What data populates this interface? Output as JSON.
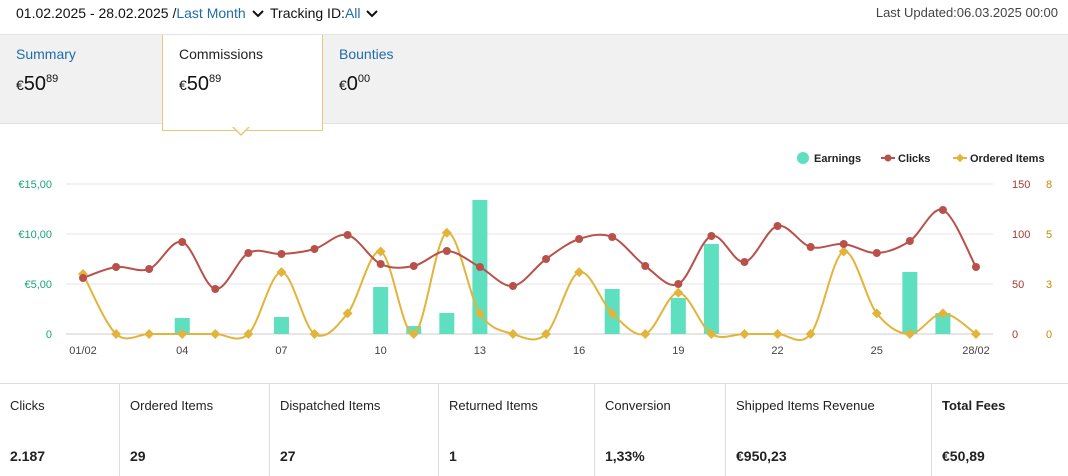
{
  "header": {
    "date_range": "01.02.2025 - 28.02.2025 /",
    "period_label": "Last Month",
    "tracking_label": "Tracking ID:",
    "tracking_value": "All",
    "last_updated": "Last Updated:06.03.2025 00:00"
  },
  "tabs": [
    {
      "label": "Summary",
      "currency": "€",
      "whole": "50",
      "cents": "89"
    },
    {
      "label": "Commissions",
      "currency": "€",
      "whole": "50",
      "cents": "89"
    },
    {
      "label": "Bounties",
      "currency": "€",
      "whole": "0",
      "cents": "00"
    }
  ],
  "stats": [
    {
      "label": "Clicks",
      "value": "2.187"
    },
    {
      "label": "Ordered Items",
      "value": "29"
    },
    {
      "label": "Dispatched Items",
      "value": "27"
    },
    {
      "label": "Returned Items",
      "value": "1"
    },
    {
      "label": "Conversion",
      "value": "1,33%"
    },
    {
      "label": "Shipped Items Revenue",
      "value": "€950,23"
    },
    {
      "label": "Total Fees",
      "value": "€50,89"
    }
  ],
  "chart_data": {
    "type": "bar+line",
    "legend_position": "top-right",
    "grid": true,
    "x": [
      "01/02",
      "02/02",
      "03/02",
      "04/02",
      "05/02",
      "06/02",
      "07/02",
      "08/02",
      "09/02",
      "10/02",
      "11/02",
      "12/02",
      "13/02",
      "14/02",
      "15/02",
      "16/02",
      "17/02",
      "18/02",
      "19/02",
      "20/02",
      "21/02",
      "22/02",
      "23/02",
      "24/02",
      "25/02",
      "26/02",
      "27/02",
      "28/02"
    ],
    "x_tick_labels": [
      "01/02",
      "04",
      "07",
      "10",
      "13",
      "16",
      "19",
      "22",
      "25",
      "28/02"
    ],
    "x_tick_index": [
      0,
      3,
      6,
      9,
      12,
      15,
      18,
      21,
      24,
      27
    ],
    "y_left": {
      "ticks": [
        "0",
        "€5,00",
        "€10,00",
        "€15,00"
      ],
      "range": [
        0,
        15
      ],
      "color": "#1aa37a"
    },
    "y_right1": {
      "ticks": [
        "0",
        "50",
        "100",
        "150"
      ],
      "range": [
        0,
        150
      ],
      "color": "#a33b33"
    },
    "y_right2": {
      "ticks": [
        "0",
        "3",
        "5",
        "8"
      ],
      "range": [
        0,
        8
      ],
      "color": "#c98a00"
    },
    "series": [
      {
        "name": "Earnings",
        "kind": "bar",
        "axis": "left",
        "color": "#5ee0c0",
        "values": [
          0,
          0,
          0,
          1.6,
          0,
          0,
          1.7,
          0,
          0,
          4.7,
          0.8,
          2.1,
          13.4,
          0,
          0,
          0,
          4.5,
          0,
          3.6,
          9.0,
          0,
          0,
          0,
          0,
          0,
          6.2,
          2.1,
          0
        ]
      },
      {
        "name": "Clicks",
        "kind": "line",
        "axis": "right1",
        "color": "#b9514b",
        "values": [
          56,
          67,
          65,
          92,
          45,
          81,
          80,
          85,
          99,
          70,
          68,
          83,
          67,
          48,
          75,
          95,
          97,
          68,
          50,
          98,
          72,
          108,
          87,
          90,
          81,
          93,
          124,
          67
        ]
      },
      {
        "name": "Ordered Items",
        "kind": "line",
        "axis": "right2",
        "color": "#e2b43c",
        "values": [
          3.2,
          0,
          0,
          0,
          0,
          0,
          3.3,
          0,
          1.1,
          4.4,
          0,
          5.4,
          1.1,
          0,
          0,
          3.3,
          1.1,
          0,
          2.2,
          0,
          0,
          0,
          0,
          4.4,
          1.1,
          0,
          1.1,
          0
        ]
      }
    ]
  }
}
